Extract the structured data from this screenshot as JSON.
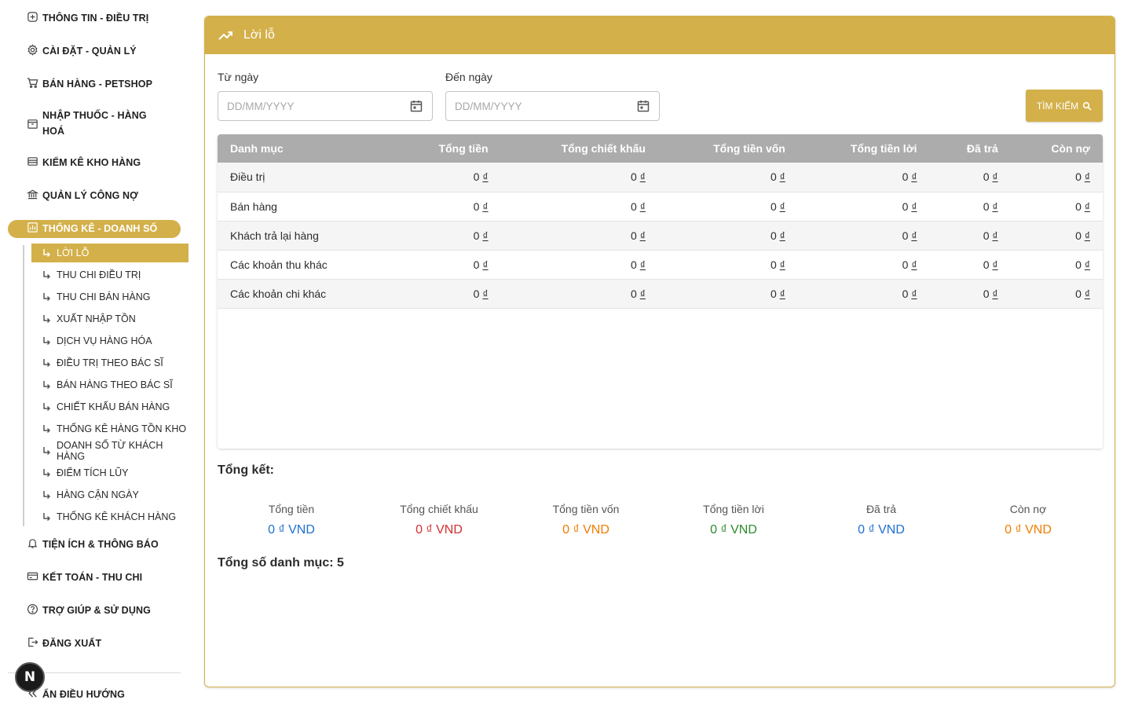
{
  "sidebar": {
    "items": [
      {
        "label": "THÔNG TIN - ĐIỀU TRỊ",
        "icon": "medical-icon"
      },
      {
        "label": "CÀI ĐẶT - QUẢN LÝ",
        "icon": "gear-icon"
      },
      {
        "label": "BÁN HÀNG - PETSHOP",
        "icon": "cart-icon"
      },
      {
        "label": "NHẬP THUỐC - HÀNG HOÁ",
        "icon": "archive-icon"
      },
      {
        "label": "KIỂM KÊ KHO HÀNG",
        "icon": "list-icon"
      },
      {
        "label": "QUẢN LÝ CÔNG NỢ",
        "icon": "bank-icon"
      },
      {
        "label": "THỐNG KÊ - DOANH SỐ",
        "icon": "chart-icon"
      },
      {
        "label": "TIỆN ÍCH & THÔNG BÁO",
        "icon": "bell-icon"
      },
      {
        "label": "KẾT TOÁN - THU CHI",
        "icon": "card-icon"
      },
      {
        "label": "TRỢ GIÚP & SỬ DỤNG",
        "icon": "help-icon"
      },
      {
        "label": "ĐĂNG XUẤT",
        "icon": "logout-icon"
      }
    ],
    "sub_items": [
      "LỜI LỖ",
      "THU CHI ĐIỀU TRỊ",
      "THU CHI BÁN HÀNG",
      "XUẤT NHẬP TỒN",
      "DỊCH VỤ HÀNG HÓA",
      "ĐIỀU TRỊ THEO BÁC SĨ",
      "BÁN HÀNG THEO BÁC SĨ",
      "CHIẾT KHẤU BÁN HÀNG",
      "THỐNG KÊ HÀNG TỒN KHO",
      "DOANH SỐ TỪ KHÁCH HÀNG",
      "ĐIỂM TÍCH LŨY",
      "HÀNG CẬN NGÀY",
      "THỐNG KÊ KHÁCH HÀNG"
    ],
    "hide_nav": "ẨN ĐIỀU HƯỚNG",
    "badge": "N"
  },
  "page": {
    "title": "Lời lỗ",
    "from_label": "Từ ngày",
    "to_label": "Đến ngày",
    "date_placeholder": "DD/MM/YYYY",
    "search_label": "TÌM KIẾM"
  },
  "table": {
    "headers": [
      "Danh mục",
      "Tổng tiền",
      "Tổng chiết khấu",
      "Tổng tiền vốn",
      "Tổng tiền lời",
      "Đã trả",
      "Còn nợ"
    ],
    "rows": [
      {
        "name": "Điều trị",
        "values": [
          "0",
          "0",
          "0",
          "0",
          "0",
          "0"
        ]
      },
      {
        "name": "Bán hàng",
        "values": [
          "0",
          "0",
          "0",
          "0",
          "0",
          "0"
        ]
      },
      {
        "name": "Khách trả lại hàng",
        "values": [
          "0",
          "0",
          "0",
          "0",
          "0",
          "0"
        ]
      },
      {
        "name": "Các khoản thu khác",
        "values": [
          "0",
          "0",
          "0",
          "0",
          "0",
          "0"
        ]
      },
      {
        "name": "Các khoản chi khác",
        "values": [
          "0",
          "0",
          "0",
          "0",
          "0",
          "0"
        ]
      }
    ],
    "currency_symbol": "₫"
  },
  "summary": {
    "title": "Tổng kết:",
    "items": [
      {
        "label": "Tổng tiền",
        "value": "0 ₫ VND",
        "color": "#1e6fd0"
      },
      {
        "label": "Tổng chiết khấu",
        "value": "0 ₫ VND",
        "color": "#d32f2f"
      },
      {
        "label": "Tổng tiền vốn",
        "value": "0 ₫ VND",
        "color": "#ef7d00"
      },
      {
        "label": "Tổng tiền lời",
        "value": "0 ₫ VND",
        "color": "#2e8b2e"
      },
      {
        "label": "Đã trả",
        "value": "0 ₫ VND",
        "color": "#1e6fd0"
      },
      {
        "label": "Còn nợ",
        "value": "0 ₫ VND",
        "color": "#ef7d00"
      }
    ],
    "total_count": "Tổng số danh mục: 5"
  },
  "colors": {
    "accent": "#d3b04a",
    "table_header": "#acacac"
  }
}
